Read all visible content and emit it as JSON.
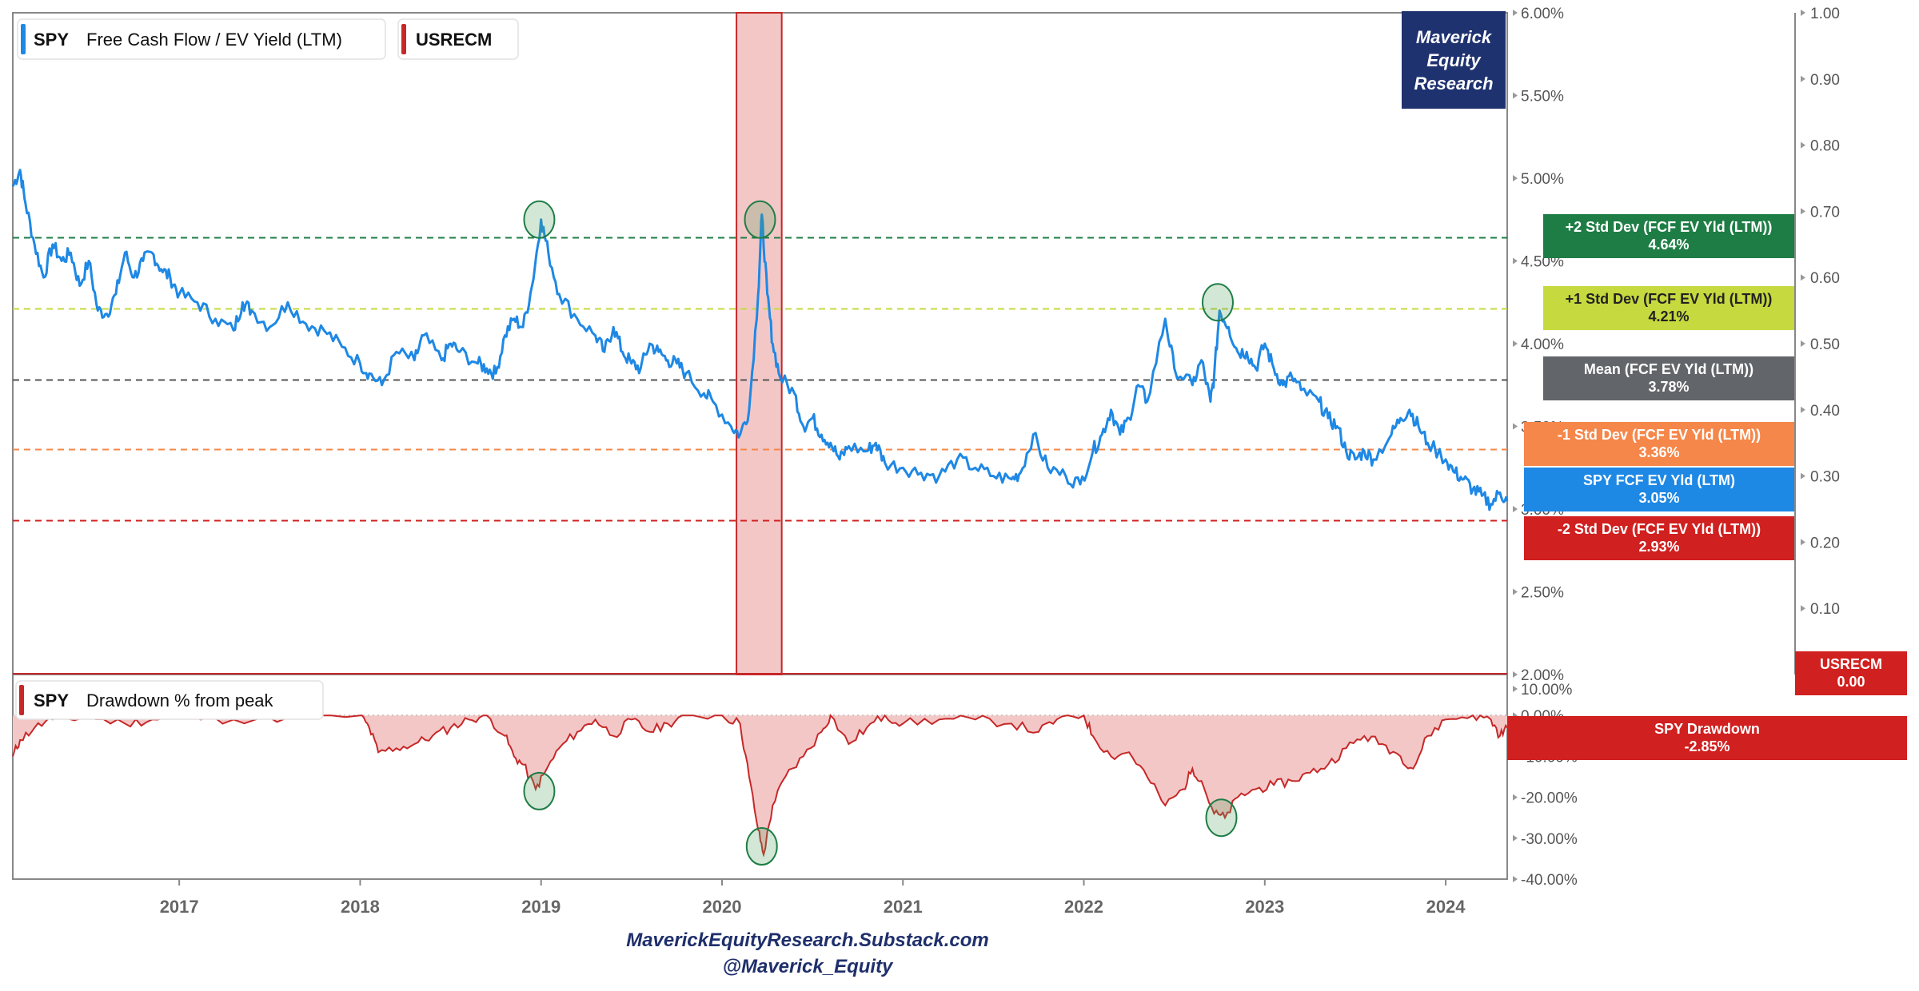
{
  "legend": {
    "main": {
      "symbol": "SPY",
      "label": "Free Cash Flow / EV Yield (LTM)",
      "color": "#1e88e5"
    },
    "recession": {
      "symbol": "USRECM",
      "color": "#c62828"
    },
    "drawdown": {
      "symbol": "SPY",
      "label": "Drawdown % from peak",
      "color": "#c62828"
    }
  },
  "brand": {
    "line1": "Maverick",
    "line2": "Equity",
    "line3": "Research",
    "bg": "#1f3270"
  },
  "footer": {
    "line1": "MaverickEquityResearch.Substack.com",
    "line2": "@Maverick_Equity"
  },
  "badges": [
    {
      "key": "plus2",
      "title": "+2 Std Dev (FCF EV Yld (LTM))",
      "value": "4.64%",
      "color": "#1e7d45",
      "text": "#ffffff"
    },
    {
      "key": "plus1",
      "title": "+1 Std Dev (FCF EV Yld (LTM))",
      "value": "4.21%",
      "color": "#c6d93f",
      "text": "#222222"
    },
    {
      "key": "mean",
      "title": "Mean (FCF EV Yld (LTM))",
      "value": "3.78%",
      "color": "#626569",
      "text": "#ffffff"
    },
    {
      "key": "minus1",
      "title": "-1 Std Dev (FCF EV Yld (LTM))",
      "value": "3.36%",
      "color": "#f5874a",
      "text": "#ffffff"
    },
    {
      "key": "spy",
      "title": "SPY FCF EV Yld (LTM)",
      "value": "3.05%",
      "color": "#1e88e5",
      "text": "#ffffff"
    },
    {
      "key": "minus2",
      "title": "-2 Std Dev (FCF EV Yld (LTM))",
      "value": "2.93%",
      "color": "#d0201f",
      "text": "#ffffff"
    },
    {
      "key": "usrecm",
      "title": "USRECM",
      "value": "0.00",
      "color": "#d0201f",
      "text": "#ffffff"
    },
    {
      "key": "dd",
      "title": "SPY Drawdown",
      "value": "-2.85%",
      "color": "#d0201f",
      "text": "#ffffff"
    }
  ],
  "chart_data": [
    {
      "type": "line",
      "title": "",
      "series": [
        {
          "name": "SPY Free Cash Flow / EV Yield (LTM)",
          "color": "#1e88e5"
        }
      ],
      "y_unit": "%",
      "ylim": [
        2.0,
        6.0
      ],
      "yticks": [
        "2.00%",
        "2.50%",
        "3.00%",
        "3.50%",
        "4.00%",
        "4.50%",
        "5.00%",
        "5.50%",
        "6.00%"
      ],
      "x_range": [
        2016.08,
        2024.34
      ],
      "x_ticks": [
        "2017",
        "2018",
        "2019",
        "2020",
        "2021",
        "2022",
        "2023",
        "2024"
      ],
      "points": [
        [
          2016.08,
          4.95
        ],
        [
          2016.12,
          5.05
        ],
        [
          2016.15,
          4.85
        ],
        [
          2016.2,
          4.6
        ],
        [
          2016.25,
          4.4
        ],
        [
          2016.3,
          4.6
        ],
        [
          2016.35,
          4.5
        ],
        [
          2016.4,
          4.55
        ],
        [
          2016.45,
          4.35
        ],
        [
          2016.5,
          4.5
        ],
        [
          2016.55,
          4.2
        ],
        [
          2016.6,
          4.18
        ],
        [
          2016.65,
          4.3
        ],
        [
          2016.7,
          4.55
        ],
        [
          2016.75,
          4.4
        ],
        [
          2016.8,
          4.5
        ],
        [
          2016.85,
          4.55
        ],
        [
          2016.9,
          4.45
        ],
        [
          2016.95,
          4.4
        ],
        [
          2017.0,
          4.3
        ],
        [
          2017.1,
          4.25
        ],
        [
          2017.2,
          4.15
        ],
        [
          2017.3,
          4.08
        ],
        [
          2017.35,
          4.25
        ],
        [
          2017.4,
          4.2
        ],
        [
          2017.5,
          4.1
        ],
        [
          2017.6,
          4.25
        ],
        [
          2017.7,
          4.12
        ],
        [
          2017.8,
          4.08
        ],
        [
          2017.9,
          3.98
        ],
        [
          2018.0,
          3.88
        ],
        [
          2018.05,
          3.82
        ],
        [
          2018.12,
          3.75
        ],
        [
          2018.2,
          3.95
        ],
        [
          2018.3,
          3.9
        ],
        [
          2018.35,
          4.05
        ],
        [
          2018.45,
          3.9
        ],
        [
          2018.5,
          4.0
        ],
        [
          2018.55,
          3.95
        ],
        [
          2018.65,
          3.88
        ],
        [
          2018.7,
          3.85
        ],
        [
          2018.75,
          3.82
        ],
        [
          2018.8,
          4.05
        ],
        [
          2018.85,
          4.15
        ],
        [
          2018.9,
          4.1
        ],
        [
          2018.95,
          4.35
        ],
        [
          2019.0,
          4.75
        ],
        [
          2019.04,
          4.55
        ],
        [
          2019.1,
          4.3
        ],
        [
          2019.2,
          4.15
        ],
        [
          2019.3,
          4.05
        ],
        [
          2019.35,
          3.95
        ],
        [
          2019.4,
          4.1
        ],
        [
          2019.45,
          3.95
        ],
        [
          2019.5,
          3.88
        ],
        [
          2019.55,
          3.85
        ],
        [
          2019.6,
          4.0
        ],
        [
          2019.65,
          3.95
        ],
        [
          2019.7,
          3.9
        ],
        [
          2019.75,
          3.88
        ],
        [
          2019.8,
          3.82
        ],
        [
          2019.9,
          3.7
        ],
        [
          2019.95,
          3.65
        ],
        [
          2020.05,
          3.5
        ],
        [
          2020.1,
          3.45
        ],
        [
          2020.15,
          3.6
        ],
        [
          2020.2,
          4.3
        ],
        [
          2020.22,
          4.78
        ],
        [
          2020.25,
          4.3
        ],
        [
          2020.28,
          4.0
        ],
        [
          2020.32,
          3.8
        ],
        [
          2020.4,
          3.7
        ],
        [
          2020.45,
          3.5
        ],
        [
          2020.5,
          3.55
        ],
        [
          2020.55,
          3.45
        ],
        [
          2020.6,
          3.4
        ],
        [
          2020.65,
          3.3
        ],
        [
          2020.7,
          3.38
        ],
        [
          2020.8,
          3.35
        ],
        [
          2020.85,
          3.4
        ],
        [
          2020.9,
          3.28
        ],
        [
          2021.0,
          3.25
        ],
        [
          2021.1,
          3.22
        ],
        [
          2021.2,
          3.2
        ],
        [
          2021.3,
          3.3
        ],
        [
          2021.4,
          3.25
        ],
        [
          2021.5,
          3.2
        ],
        [
          2021.6,
          3.18
        ],
        [
          2021.65,
          3.22
        ],
        [
          2021.72,
          3.45
        ],
        [
          2021.8,
          3.25
        ],
        [
          2021.9,
          3.2
        ],
        [
          2021.98,
          3.15
        ],
        [
          2022.05,
          3.35
        ],
        [
          2022.1,
          3.45
        ],
        [
          2022.15,
          3.6
        ],
        [
          2022.2,
          3.45
        ],
        [
          2022.25,
          3.55
        ],
        [
          2022.3,
          3.75
        ],
        [
          2022.35,
          3.65
        ],
        [
          2022.45,
          4.15
        ],
        [
          2022.5,
          3.85
        ],
        [
          2022.6,
          3.75
        ],
        [
          2022.65,
          3.9
        ],
        [
          2022.7,
          3.65
        ],
        [
          2022.72,
          3.8
        ],
        [
          2022.75,
          4.2
        ],
        [
          2022.8,
          4.1
        ],
        [
          2022.85,
          3.95
        ],
        [
          2022.9,
          3.95
        ],
        [
          2022.95,
          3.85
        ],
        [
          2023.0,
          4.0
        ],
        [
          2023.05,
          3.85
        ],
        [
          2023.1,
          3.75
        ],
        [
          2023.15,
          3.8
        ],
        [
          2023.2,
          3.72
        ],
        [
          2023.3,
          3.65
        ],
        [
          2023.35,
          3.55
        ],
        [
          2023.4,
          3.5
        ],
        [
          2023.45,
          3.35
        ],
        [
          2023.5,
          3.3
        ],
        [
          2023.55,
          3.35
        ],
        [
          2023.6,
          3.3
        ],
        [
          2023.7,
          3.45
        ],
        [
          2023.75,
          3.55
        ],
        [
          2023.8,
          3.6
        ],
        [
          2023.85,
          3.5
        ],
        [
          2023.9,
          3.4
        ],
        [
          2024.0,
          3.3
        ],
        [
          2024.05,
          3.22
        ],
        [
          2024.1,
          3.18
        ],
        [
          2024.15,
          3.12
        ],
        [
          2024.2,
          3.08
        ],
        [
          2024.25,
          3.03
        ],
        [
          2024.3,
          3.1
        ],
        [
          2024.34,
          3.05
        ]
      ],
      "reference_lines": [
        {
          "name": "+2 Std Dev",
          "value": 4.64,
          "color": "#1e7d45"
        },
        {
          "name": "+1 Std Dev",
          "value": 4.21,
          "color": "#c6d93f"
        },
        {
          "name": "Mean",
          "value": 3.78,
          "color": "#555555"
        },
        {
          "name": "-1 Std Dev",
          "value": 3.36,
          "color": "#f5874a"
        },
        {
          "name": "-2 Std Dev",
          "value": 2.93,
          "color": "#d0201f"
        }
      ],
      "secondary_axis": {
        "series": "USRECM",
        "ylim": [
          0.0,
          1.0
        ],
        "yticks": [
          "0.10",
          "0.20",
          "0.30",
          "0.40",
          "0.50",
          "0.60",
          "0.70",
          "0.80",
          "0.90",
          "1.00"
        ],
        "recession_periods": [
          [
            2020.08,
            2020.33
          ]
        ]
      },
      "highlights": [
        [
          2018.99,
          4.75
        ],
        [
          2020.21,
          4.75
        ],
        [
          2022.74,
          4.25
        ]
      ]
    },
    {
      "type": "area",
      "series": [
        {
          "name": "SPY Drawdown % from peak",
          "color": "#c62828"
        }
      ],
      "y_unit": "%",
      "ylim": [
        -40,
        10
      ],
      "yticks": [
        "10.00%",
        "0.00%",
        "-10.00%",
        "-20.00%",
        "-30.00%",
        "-40.00%"
      ],
      "points": [
        [
          2016.08,
          -10
        ],
        [
          2016.12,
          -6
        ],
        [
          2016.2,
          -3
        ],
        [
          2016.3,
          -1
        ],
        [
          2016.5,
          -0.5
        ],
        [
          2016.7,
          -2
        ],
        [
          2016.85,
          -1
        ],
        [
          2017.0,
          -0.5
        ],
        [
          2017.3,
          -1
        ],
        [
          2017.6,
          -0.5
        ],
        [
          2018.0,
          0
        ],
        [
          2018.05,
          -3
        ],
        [
          2018.1,
          -9
        ],
        [
          2018.2,
          -8
        ],
        [
          2018.3,
          -7
        ],
        [
          2018.4,
          -5
        ],
        [
          2018.5,
          -3
        ],
        [
          2018.6,
          -1
        ],
        [
          2018.7,
          0
        ],
        [
          2018.8,
          -5
        ],
        [
          2018.85,
          -10
        ],
        [
          2018.9,
          -12
        ],
        [
          2018.97,
          -18
        ],
        [
          2019.02,
          -14
        ],
        [
          2019.1,
          -8
        ],
        [
          2019.2,
          -4
        ],
        [
          2019.3,
          -1
        ],
        [
          2019.4,
          -5
        ],
        [
          2019.5,
          -1
        ],
        [
          2019.6,
          -4
        ],
        [
          2019.7,
          -2
        ],
        [
          2019.8,
          0
        ],
        [
          2020.0,
          0
        ],
        [
          2020.1,
          -2
        ],
        [
          2020.15,
          -15
        ],
        [
          2020.2,
          -28
        ],
        [
          2020.23,
          -34
        ],
        [
          2020.28,
          -22
        ],
        [
          2020.35,
          -15
        ],
        [
          2020.45,
          -10
        ],
        [
          2020.55,
          -4
        ],
        [
          2020.6,
          0
        ],
        [
          2020.7,
          -7
        ],
        [
          2020.8,
          -3
        ],
        [
          2020.9,
          0
        ],
        [
          2021.0,
          -2
        ],
        [
          2021.2,
          -1
        ],
        [
          2021.4,
          -1
        ],
        [
          2021.6,
          -2
        ],
        [
          2021.75,
          -4
        ],
        [
          2021.85,
          -1
        ],
        [
          2022.0,
          0
        ],
        [
          2022.05,
          -5
        ],
        [
          2022.15,
          -10
        ],
        [
          2022.25,
          -9
        ],
        [
          2022.35,
          -15
        ],
        [
          2022.45,
          -22
        ],
        [
          2022.55,
          -18
        ],
        [
          2022.6,
          -13
        ],
        [
          2022.65,
          -16
        ],
        [
          2022.72,
          -24
        ],
        [
          2022.78,
          -25
        ],
        [
          2022.85,
          -20
        ],
        [
          2022.95,
          -18
        ],
        [
          2023.05,
          -17
        ],
        [
          2023.15,
          -16
        ],
        [
          2023.25,
          -14
        ],
        [
          2023.35,
          -12
        ],
        [
          2023.45,
          -8
        ],
        [
          2023.55,
          -5
        ],
        [
          2023.65,
          -7
        ],
        [
          2023.75,
          -10
        ],
        [
          2023.82,
          -13
        ],
        [
          2023.9,
          -5
        ],
        [
          2024.0,
          -1
        ],
        [
          2024.15,
          0
        ],
        [
          2024.25,
          -1
        ],
        [
          2024.3,
          -5
        ],
        [
          2024.34,
          -3
        ]
      ],
      "highlights": [
        [
          2018.99,
          -18.5
        ],
        [
          2020.22,
          -32
        ],
        [
          2022.76,
          -25
        ]
      ]
    }
  ]
}
